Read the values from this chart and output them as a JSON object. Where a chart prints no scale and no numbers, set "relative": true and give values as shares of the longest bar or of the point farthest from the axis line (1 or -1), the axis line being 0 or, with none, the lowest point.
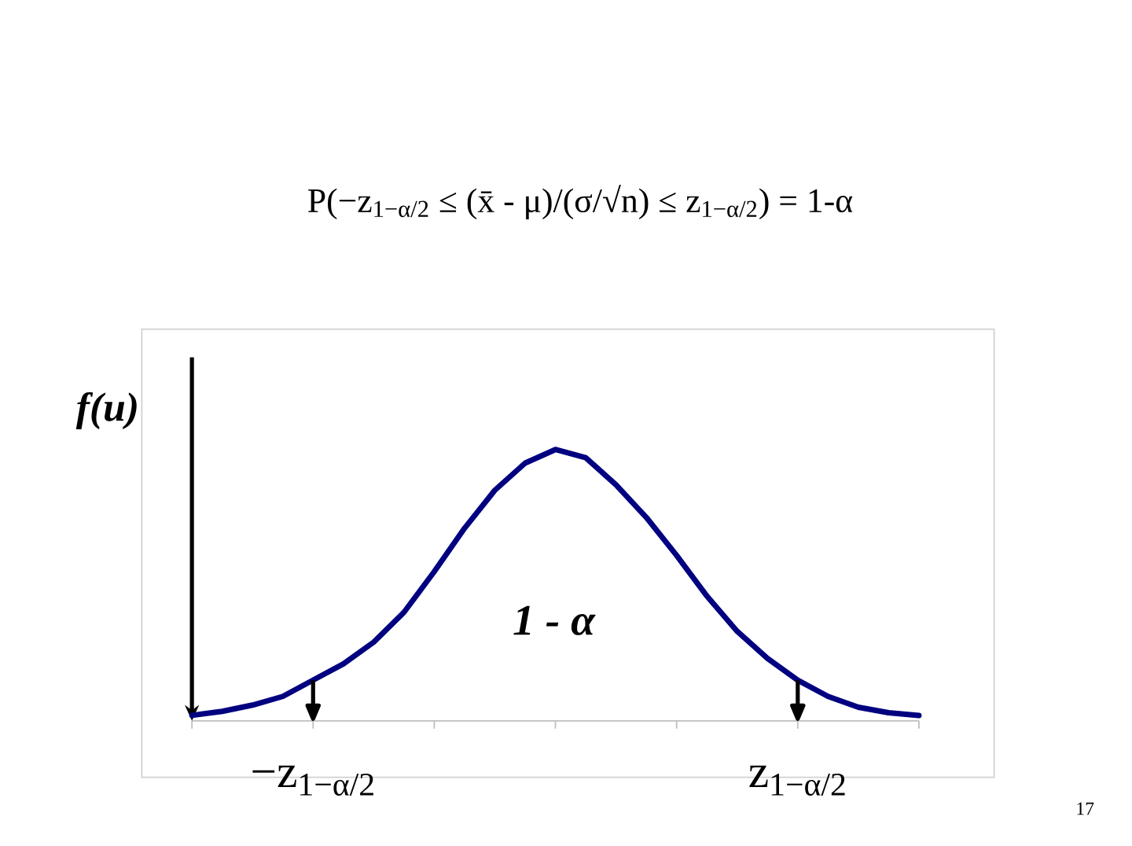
{
  "chart_data": {
    "type": "line",
    "title": "P(−z$_{1−α/2}$ ≤ (x̄ - μ)/(σ/√n) ≤ z$_{1−α/2}$) = 1-α",
    "ylabel": "f(u)",
    "categories": [
      null,
      null,
      null,
      null,
      "−z$_{1−α/2}$",
      null,
      null,
      null,
      null,
      null,
      null,
      null,
      null,
      null,
      null,
      null,
      null,
      null,
      null,
      null,
      "z$_{1−α/2}$",
      null,
      null,
      null,
      null
    ],
    "relative": true,
    "series": [
      {
        "color": "#000080",
        "values": [
          0.02,
          0.035,
          0.058,
          0.09,
          0.15,
          0.21,
          0.29,
          0.4,
          0.55,
          0.71,
          0.85,
          0.95,
          1,
          0.97,
          0.87,
          0.75,
          0.61,
          0.46,
          0.33,
          0.23,
          0.15,
          0.09,
          0.05,
          0.03,
          0.02
        ]
      }
    ],
    "ref_lines": [
      {
        "axis": "x",
        "value": "−z$_{1−α/2}$"
      },
      {
        "axis": "x",
        "value": "z$_{1−α/2}$"
      }
    ],
    "annotations": [
      "1 - α",
      "17"
    ]
  }
}
